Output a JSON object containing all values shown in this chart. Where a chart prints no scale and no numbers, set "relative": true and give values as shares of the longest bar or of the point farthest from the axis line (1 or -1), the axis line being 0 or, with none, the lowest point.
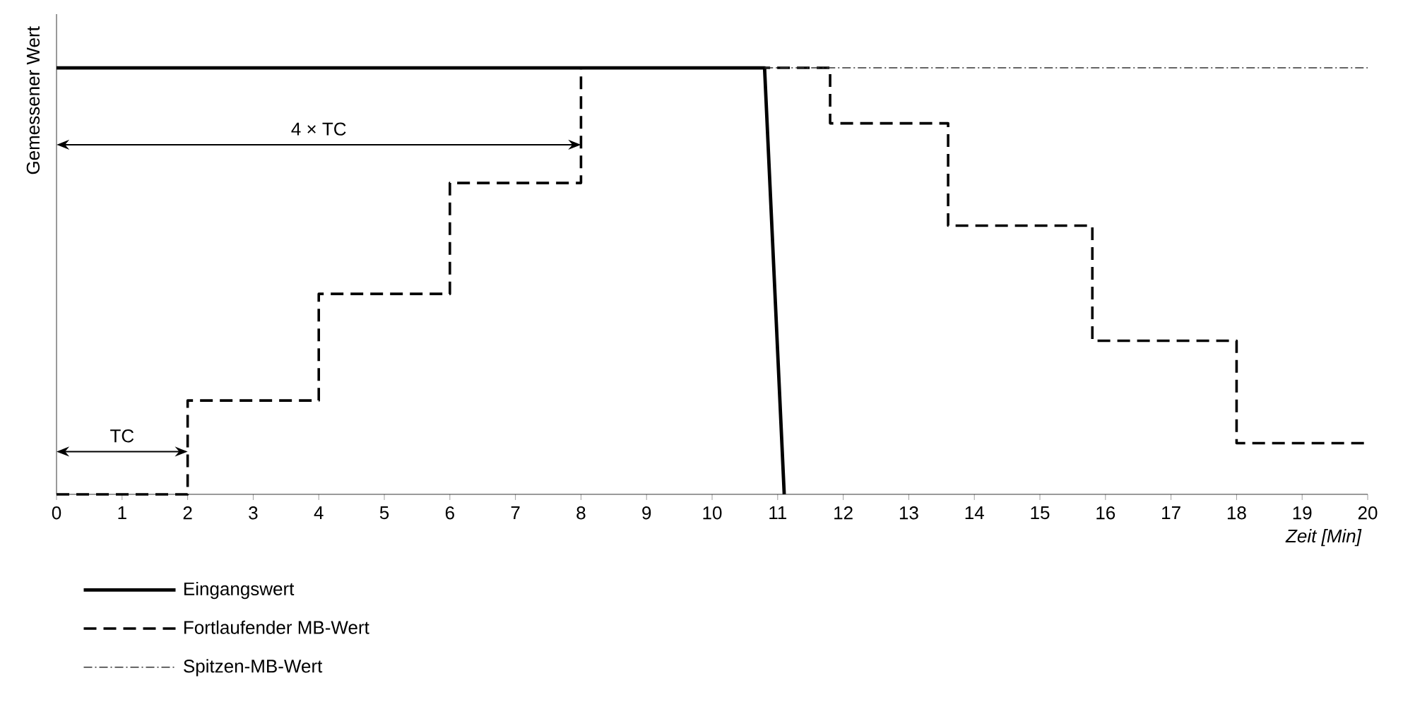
{
  "chart_data": {
    "type": "line",
    "relative": true,
    "ylabel": "Gemessener Wert",
    "xlabel": "Zeit [Min]",
    "xlim": [
      0,
      20
    ],
    "xticks": [
      0,
      1,
      2,
      3,
      4,
      5,
      6,
      7,
      8,
      9,
      10,
      11,
      12,
      13,
      14,
      15,
      16,
      17,
      18,
      19,
      20
    ],
    "tick_labels": "x",
    "legend": "bottom left",
    "series": [
      {
        "name": "Eingangswert",
        "line_style": "solid",
        "color": "#000000",
        "x": [
          0,
          10.8,
          11.1
        ],
        "values": [
          1,
          1,
          0
        ]
      },
      {
        "name": "Fortlaufender MB-Wert",
        "type": "step",
        "line_style": "dashed",
        "color": "#000000",
        "x": [
          0,
          2,
          4,
          6,
          8,
          11.8,
          13.6,
          15.8,
          18,
          20
        ],
        "values": [
          0,
          0.22,
          0.47,
          0.73,
          1,
          0.87,
          0.63,
          0.36,
          0.12,
          0.12
        ]
      },
      {
        "name": "Spitzen-MB-Wert",
        "line_style": "dashdot",
        "color": "#333333",
        "x": [
          10.8,
          20
        ],
        "values": [
          1,
          1
        ]
      }
    ],
    "annotations": [
      "4 × TC",
      "TC"
    ]
  }
}
